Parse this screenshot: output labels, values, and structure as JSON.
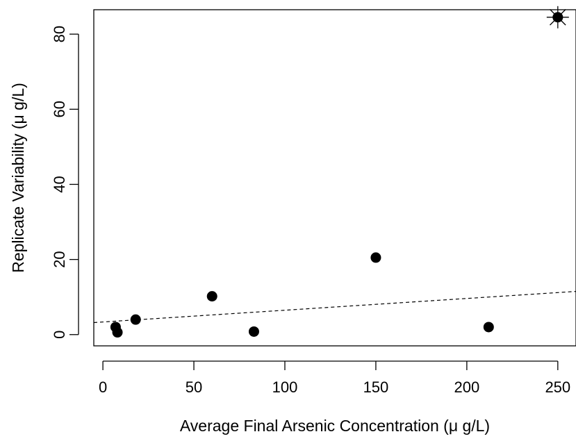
{
  "chart_data": {
    "type": "scatter",
    "xlabel": "Average Final Arsenic Concentration (μ g/L)",
    "ylabel": "Replicate Variability (μ g/L)",
    "xlim": [
      -5,
      260
    ],
    "ylim": [
      -3,
      86.5
    ],
    "x_ticks": [
      0,
      50,
      100,
      150,
      200,
      250
    ],
    "y_ticks": [
      0,
      20,
      40,
      60,
      80
    ],
    "grid": false,
    "legend": "none",
    "points": [
      {
        "x": 7,
        "y": 2.0
      },
      {
        "x": 8,
        "y": 0.6
      },
      {
        "x": 18,
        "y": 4.0
      },
      {
        "x": 60,
        "y": 10.2
      },
      {
        "x": 83,
        "y": 0.8
      },
      {
        "x": 150,
        "y": 20.5
      },
      {
        "x": 212,
        "y": 2.0
      },
      {
        "x": 250,
        "y": 84.5,
        "marker": "asterisk-outlier"
      }
    ],
    "trend_line": {
      "style": "dashed",
      "from": {
        "x": -5,
        "y": 3.2
      },
      "to": {
        "x": 260,
        "y": 11.5
      }
    },
    "colors": {
      "points": "#000000",
      "axes": "#000000",
      "background": "#ffffff"
    }
  }
}
